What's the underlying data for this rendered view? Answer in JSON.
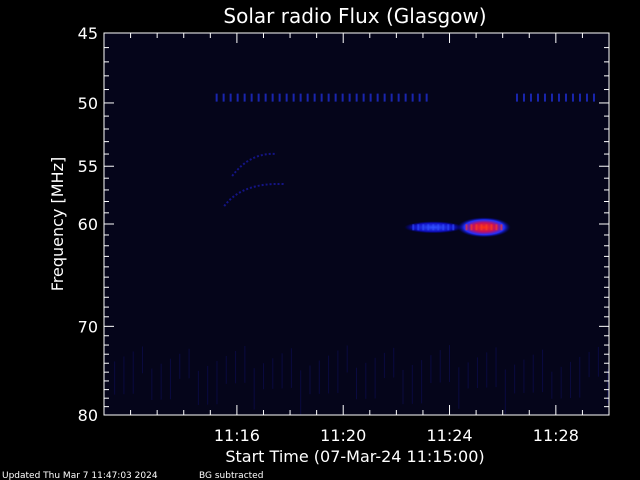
{
  "chart_data": {
    "type": "heatmap",
    "title": "Solar radio Flux (Glasgow)",
    "xlabel": "Start Time (07-Mar-24 11:15:00)",
    "ylabel": "Frequency [MHz]",
    "y_scale": "log",
    "xlim_minutes": [
      11.0,
      30.0
    ],
    "ylim_mhz": [
      45,
      80
    ],
    "x_ticks": [
      {
        "label": "11:16",
        "minute": 16
      },
      {
        "label": "11:20",
        "minute": 20
      },
      {
        "label": "11:24",
        "minute": 24
      },
      {
        "label": "11:28",
        "minute": 28
      }
    ],
    "y_ticks": [
      45,
      50,
      55,
      60,
      70,
      80
    ],
    "colors": {
      "background": "#000000",
      "plot_bg": "#05051a",
      "axis": "#ffffff",
      "low": "#0000aa",
      "mid": "#2040ff",
      "high": "#ff3010"
    },
    "features": [
      {
        "name": "interference-line",
        "freq": 49.6,
        "t_start": 15.2,
        "t_end": 23.2,
        "intensity": 0.45
      },
      {
        "name": "interference-line",
        "freq": 49.6,
        "t_start": 26.5,
        "t_end": 29.6,
        "intensity": 0.45
      },
      {
        "name": "burst",
        "freq": 60.3,
        "t_start": 22.6,
        "t_end": 24.2,
        "intensity": 0.5
      },
      {
        "name": "burst-core",
        "freq": 60.3,
        "t_start": 24.6,
        "t_end": 26.0,
        "intensity": 1.0
      },
      {
        "name": "faint-arc",
        "freq": 56.5,
        "t_start": 16.2,
        "t_end": 17.8,
        "intensity": 0.2
      },
      {
        "name": "faint-arc",
        "freq": 54.0,
        "t_start": 16.5,
        "t_end": 17.5,
        "intensity": 0.15
      }
    ]
  },
  "footer": {
    "updated": "Updated Thu Mar  7 11:47:03 2024",
    "note": "BG subtracted"
  }
}
